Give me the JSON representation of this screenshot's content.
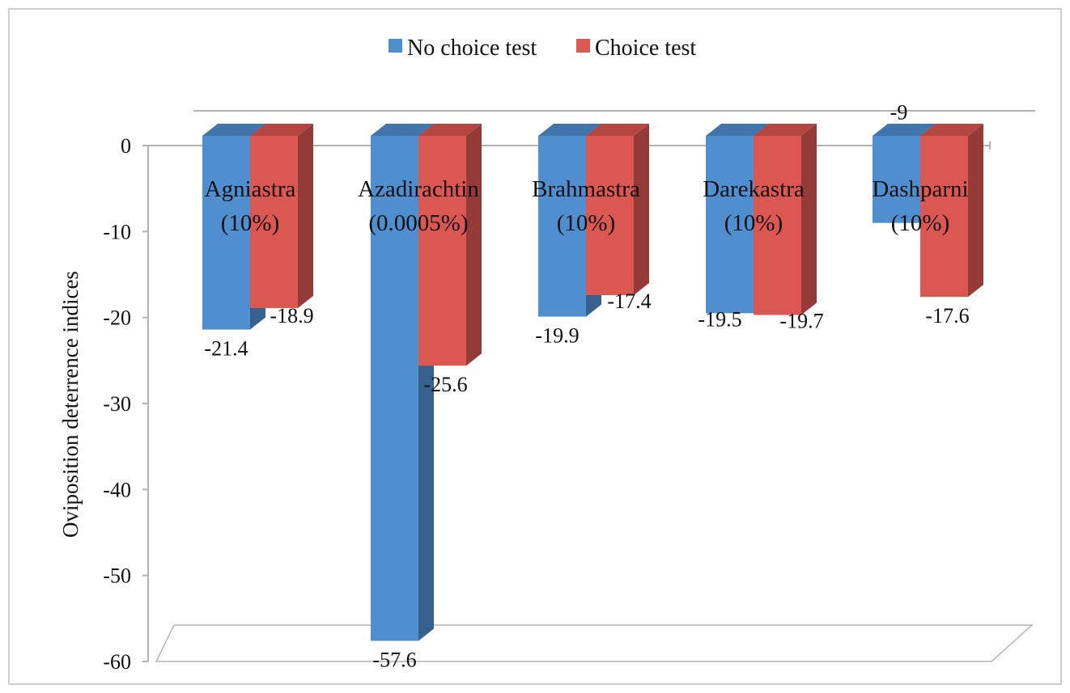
{
  "chart_data": {
    "type": "bar",
    "title": "",
    "xlabel": "",
    "ylabel": "Oviposition deterrence indices",
    "ylim": [
      -60,
      0
    ],
    "yticks": [
      0,
      -10,
      -20,
      -30,
      -40,
      -50,
      -60
    ],
    "legend_position": "top",
    "categories": [
      {
        "line1": "Agniastra",
        "line2": "(10%)"
      },
      {
        "line1": "Azadirachtin",
        "line2": "(0.0005%)"
      },
      {
        "line1": "Brahmastra",
        "line2": "(10%)"
      },
      {
        "line1": "Darekastra",
        "line2": "(10%)"
      },
      {
        "line1": "Dashparni",
        "line2": "(10%)"
      }
    ],
    "series": [
      {
        "name": "No choice test",
        "color": "#4F8FD0",
        "values": [
          -21.4,
          -57.6,
          -19.9,
          -19.5,
          -9
        ],
        "labels": [
          "-21.4",
          "-57.6",
          "-19.9",
          "-19.5",
          "-9"
        ]
      },
      {
        "name": "Choice test",
        "color": "#DB5751",
        "values": [
          -18.9,
          -25.6,
          -17.4,
          -19.7,
          -17.6
        ],
        "labels": [
          "-18.9",
          "-25.6",
          "-17.4",
          "-19.7",
          "-17.6"
        ]
      }
    ]
  }
}
